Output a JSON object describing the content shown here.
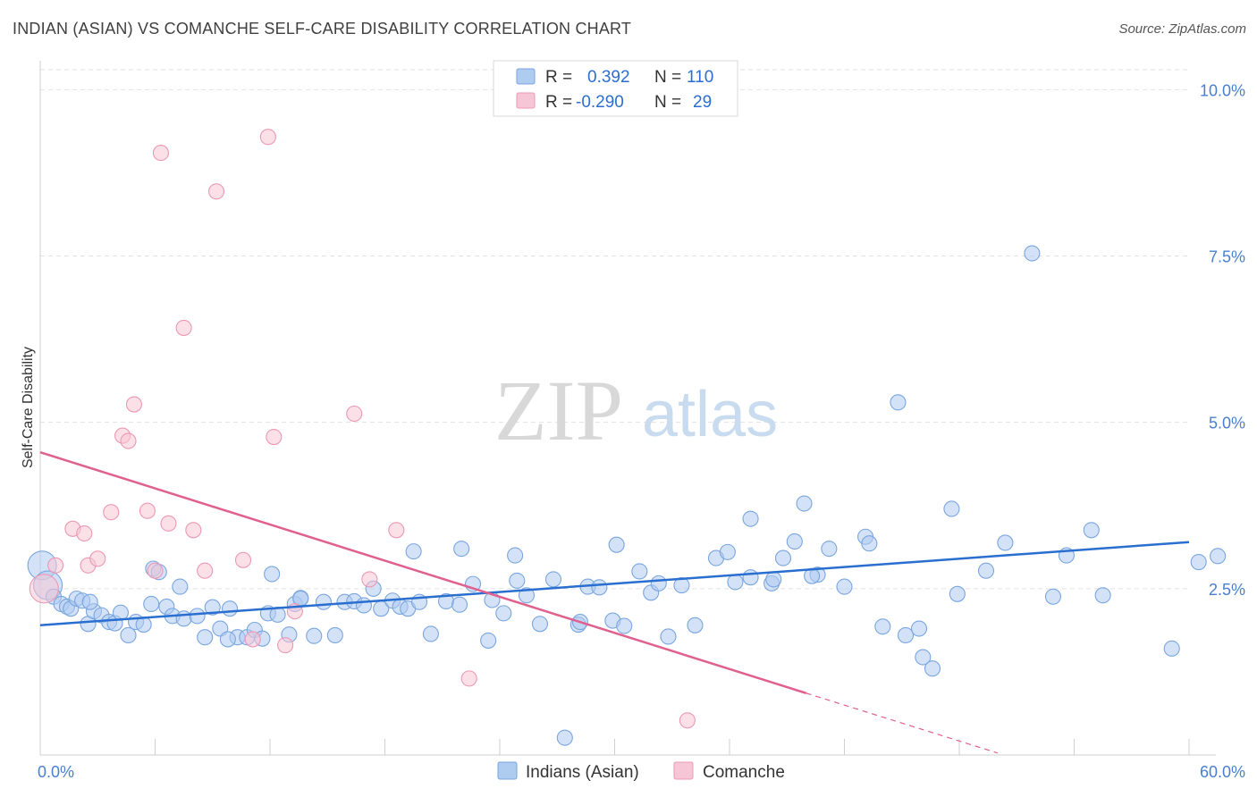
{
  "header": {
    "title": "INDIAN (ASIAN) VS COMANCHE SELF-CARE DISABILITY CORRELATION CHART",
    "source": "Source: ZipAtlas.com"
  },
  "watermark": {
    "zip": "ZIP",
    "atlas": "atlas"
  },
  "colors": {
    "blue_fill": "#aecbf0",
    "blue_stroke": "#7aa6e0",
    "blue_line": "#2a6fd0",
    "pink_fill": "#f7c6d6",
    "pink_stroke": "#ec98b4",
    "pink_line": "#e0608e",
    "tick_text": "#4a7fd0"
  },
  "legend": {
    "rows": [
      {
        "r_label": "R =",
        "r_value": "0.392",
        "n_label": "N =",
        "n_value": "110"
      },
      {
        "r_label": "R =",
        "r_value": "-0.290",
        "n_label": "N =",
        "n_value": "29"
      }
    ]
  },
  "chart_data": {
    "type": "scatter",
    "title": "INDIAN (ASIAN) VS COMANCHE SELF-CARE DISABILITY CORRELATION CHART",
    "xlabel": "",
    "ylabel": "Self-Care Disability",
    "xlim": [
      0,
      60
    ],
    "ylim": [
      0,
      10.3
    ],
    "x_tick_labels": [
      "0.0%",
      "60.0%"
    ],
    "y_ticks": [
      2.5,
      5.0,
      7.5,
      10.0
    ],
    "y_tick_labels": [
      "2.5%",
      "5.0%",
      "7.5%",
      "10.0%"
    ],
    "grid": "horizontal dashed",
    "legend_position": "top-center",
    "series": [
      {
        "name": "Indians (Asian)",
        "r": 0.392,
        "n": 110,
        "trend": {
          "x": [
            0,
            60
          ],
          "y": [
            1.95,
            3.2
          ]
        },
        "points": [
          [
            0.1,
            2.85,
            "l"
          ],
          [
            0.4,
            2.55,
            "l"
          ],
          [
            0.7,
            2.38
          ],
          [
            1.1,
            2.27
          ],
          [
            1.4,
            2.23
          ],
          [
            1.6,
            2.2
          ],
          [
            1.9,
            2.35
          ],
          [
            2.2,
            2.32
          ],
          [
            2.5,
            1.97
          ],
          [
            2.8,
            2.16
          ],
          [
            3.2,
            2.1
          ],
          [
            3.6,
            2.0
          ],
          [
            3.9,
            1.98
          ],
          [
            4.2,
            2.14
          ],
          [
            4.6,
            1.8
          ],
          [
            5.0,
            2.0
          ],
          [
            5.4,
            1.96
          ],
          [
            5.8,
            2.27
          ],
          [
            6.6,
            2.23
          ],
          [
            6.9,
            2.09
          ],
          [
            7.5,
            2.05
          ],
          [
            8.2,
            2.09
          ],
          [
            8.6,
            1.77
          ],
          [
            9.0,
            2.22
          ],
          [
            9.4,
            1.9
          ],
          [
            9.9,
            2.2
          ],
          [
            10.3,
            1.77
          ],
          [
            10.8,
            1.77
          ],
          [
            11.2,
            1.88
          ],
          [
            11.9,
            2.13
          ],
          [
            12.4,
            2.11
          ],
          [
            13.0,
            1.81
          ],
          [
            13.3,
            2.27
          ],
          [
            13.6,
            2.36
          ],
          [
            14.3,
            1.79
          ],
          [
            14.8,
            2.3
          ],
          [
            15.4,
            1.8
          ],
          [
            15.9,
            2.3
          ],
          [
            16.4,
            2.31
          ],
          [
            16.9,
            2.25
          ],
          [
            17.4,
            2.5
          ],
          [
            17.8,
            2.2
          ],
          [
            18.4,
            2.32
          ],
          [
            18.8,
            2.23
          ],
          [
            19.2,
            2.2
          ],
          [
            19.8,
            2.3
          ],
          [
            20.4,
            1.82
          ],
          [
            21.2,
            2.31
          ],
          [
            21.9,
            2.26
          ],
          [
            22.6,
            2.57
          ],
          [
            23.4,
            1.72
          ],
          [
            24.2,
            2.13
          ],
          [
            24.9,
            2.62
          ],
          [
            25.4,
            2.4
          ],
          [
            26.1,
            1.97
          ],
          [
            26.8,
            2.64
          ],
          [
            27.4,
            0.26
          ],
          [
            28.1,
            1.96
          ],
          [
            28.6,
            2.53
          ],
          [
            29.2,
            2.52
          ],
          [
            29.9,
            2.02
          ],
          [
            30.5,
            1.94
          ],
          [
            31.3,
            2.76
          ],
          [
            31.9,
            2.44
          ],
          [
            32.3,
            2.58
          ],
          [
            32.8,
            1.78
          ],
          [
            33.5,
            2.55
          ],
          [
            34.2,
            1.95
          ],
          [
            35.3,
            2.96
          ],
          [
            35.9,
            3.05
          ],
          [
            36.3,
            2.6
          ],
          [
            37.1,
            2.67
          ],
          [
            38.2,
            2.58
          ],
          [
            38.8,
            2.96
          ],
          [
            39.4,
            3.21
          ],
          [
            39.9,
            3.78
          ],
          [
            40.6,
            2.71
          ],
          [
            41.2,
            3.1
          ],
          [
            42.0,
            2.53
          ],
          [
            43.1,
            3.28
          ],
          [
            44.0,
            1.93
          ],
          [
            45.2,
            1.8
          ],
          [
            46.1,
            1.47
          ],
          [
            46.6,
            1.3
          ],
          [
            47.9,
            2.42
          ],
          [
            49.4,
            2.77
          ],
          [
            50.4,
            3.19
          ],
          [
            51.8,
            7.54
          ],
          [
            52.9,
            2.38
          ],
          [
            53.6,
            3.0
          ],
          [
            54.9,
            3.38
          ],
          [
            59.1,
            1.6
          ],
          [
            60.5,
            2.9
          ],
          [
            61.5,
            2.99
          ],
          [
            30.1,
            3.16
          ],
          [
            22.0,
            3.1
          ],
          [
            19.5,
            3.06
          ],
          [
            12.1,
            2.72
          ],
          [
            7.3,
            2.53
          ],
          [
            13.6,
            2.35
          ],
          [
            38.3,
            2.64
          ],
          [
            43.3,
            3.18
          ],
          [
            37.1,
            3.55
          ],
          [
            24.8,
            3.0
          ],
          [
            11.6,
            1.75
          ],
          [
            9.8,
            1.74
          ],
          [
            5.9,
            2.8
          ],
          [
            6.2,
            2.75
          ],
          [
            2.6,
            2.3
          ],
          [
            28.2,
            2.0
          ],
          [
            44.8,
            5.3
          ],
          [
            47.6,
            3.7
          ],
          [
            55.5,
            2.4
          ],
          [
            45.9,
            1.9
          ],
          [
            40.3,
            2.69
          ],
          [
            23.6,
            2.33
          ]
        ]
      },
      {
        "name": "Comanche",
        "r": -0.29,
        "n": 29,
        "trend": {
          "x": [
            0,
            40
          ],
          "y": [
            4.55,
            0.93
          ]
        },
        "trend_dashed": {
          "x": [
            40,
            50
          ],
          "y": [
            0.93,
            0.03
          ]
        },
        "points": [
          [
            0.2,
            2.5,
            "l"
          ],
          [
            0.8,
            2.85
          ],
          [
            1.7,
            3.4
          ],
          [
            2.3,
            3.33
          ],
          [
            2.5,
            2.85
          ],
          [
            3.0,
            2.95
          ],
          [
            3.7,
            3.65
          ],
          [
            4.3,
            4.8
          ],
          [
            4.6,
            4.72
          ],
          [
            4.9,
            5.27
          ],
          [
            5.6,
            3.67
          ],
          [
            6.0,
            2.77
          ],
          [
            6.3,
            9.05
          ],
          [
            6.7,
            3.48
          ],
          [
            7.5,
            6.42
          ],
          [
            8.0,
            3.38
          ],
          [
            8.6,
            2.77
          ],
          [
            9.2,
            8.47
          ],
          [
            10.6,
            2.93
          ],
          [
            11.1,
            1.74
          ],
          [
            11.9,
            9.29
          ],
          [
            12.2,
            4.78
          ],
          [
            12.8,
            1.65
          ],
          [
            13.3,
            2.16
          ],
          [
            16.4,
            5.13
          ],
          [
            17.2,
            2.64
          ],
          [
            18.6,
            3.38
          ],
          [
            22.4,
            1.15
          ],
          [
            33.8,
            0.52
          ]
        ]
      }
    ]
  },
  "bottom_legend": [
    {
      "label": "Indians (Asian)"
    },
    {
      "label": "Comanche"
    }
  ]
}
